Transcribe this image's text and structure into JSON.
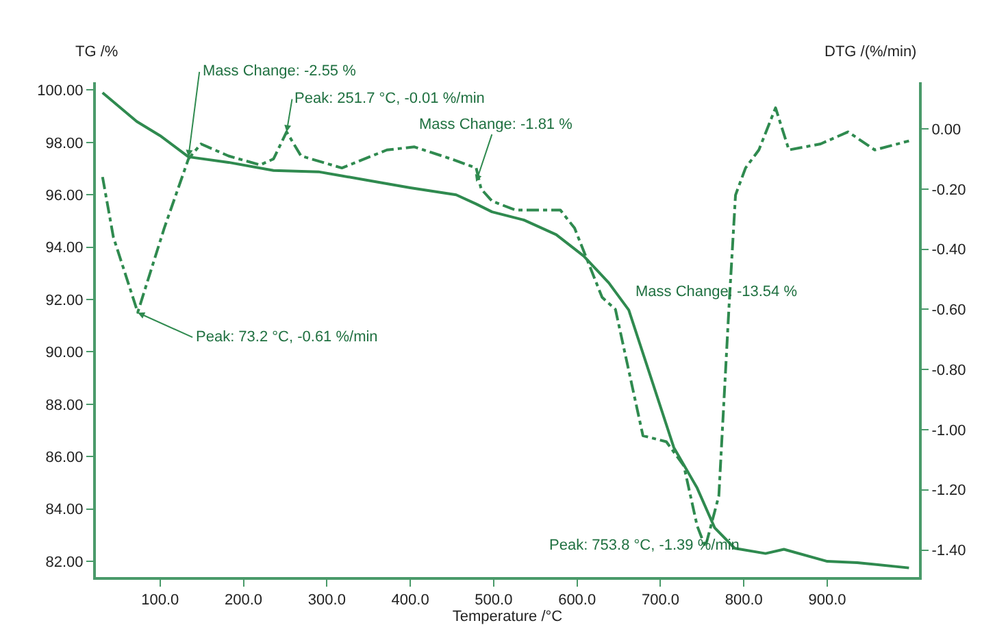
{
  "chart_data": {
    "type": "line",
    "xlabel": "Temperature /°C",
    "ylabel": "TG /%",
    "y2label": "DTG /(%/min)",
    "xlim": [
      23,
      1010
    ],
    "xticks": [
      {
        "value": 100,
        "label": "100.0"
      },
      {
        "value": 200,
        "label": "200.0"
      },
      {
        "value": 300,
        "label": "300.0"
      },
      {
        "value": 400,
        "label": "400.0"
      },
      {
        "value": 500,
        "label": "500.0"
      },
      {
        "value": 600,
        "label": "600.0"
      },
      {
        "value": 700,
        "label": "700.0"
      },
      {
        "value": 800,
        "label": "800.0"
      },
      {
        "value": 900,
        "label": "900.0"
      }
    ],
    "ylim": [
      81.4,
      100.3
    ],
    "yticks": [
      {
        "value": 82,
        "label": "82.00"
      },
      {
        "value": 84,
        "label": "84.00"
      },
      {
        "value": 86,
        "label": "86.00"
      },
      {
        "value": 88,
        "label": "88.00"
      },
      {
        "value": 90,
        "label": "90.00"
      },
      {
        "value": 92,
        "label": "92.00"
      },
      {
        "value": 94,
        "label": "94.00"
      },
      {
        "value": 96,
        "label": "96.00"
      },
      {
        "value": 98,
        "label": "98.00"
      },
      {
        "value": 100,
        "label": "100.00"
      }
    ],
    "y2lim": [
      -1.49,
      0.155
    ],
    "y2ticks": [
      {
        "value": 0,
        "label": "0.00"
      },
      {
        "value": -0.2,
        "label": "-0.20"
      },
      {
        "value": -0.4,
        "label": "-0.40"
      },
      {
        "value": -0.6,
        "label": "-0.60"
      },
      {
        "value": -0.8,
        "label": "-0.80"
      },
      {
        "value": -1.0,
        "label": "-1.00"
      },
      {
        "value": -1.2,
        "label": "-1.20"
      },
      {
        "value": -1.4,
        "label": "-1.40"
      }
    ],
    "marker": "none",
    "series": [
      {
        "color": "#2f8a4f",
        "line_style": "solid",
        "x": [
          31,
          72,
          100,
          134,
          182,
          236,
          290,
          346,
          400,
          455,
          479,
          498,
          536,
          575,
          608,
          638,
          662,
          716,
          744,
          765,
          789,
          826,
          848,
          900,
          936,
          998
        ],
        "values": [
          99.9,
          98.8,
          98.26,
          97.45,
          97.24,
          96.93,
          96.88,
          96.57,
          96.27,
          96.0,
          95.65,
          95.35,
          95.04,
          94.48,
          93.66,
          92.64,
          91.6,
          86.35,
          84.8,
          83.28,
          82.5,
          82.3,
          82.46,
          82.0,
          81.95,
          81.75
        ]
      },
      {
        "color": "#2f8a4f",
        "line_style": "dashed",
        "axis": "y2",
        "x": [
          31,
          44,
          73.2,
          105,
          134,
          149,
          182,
          220,
          236,
          251.7,
          269,
          318,
          372,
          405,
          449,
          479,
          485,
          498,
          526,
          580,
          597,
          630,
          646,
          679,
          707,
          728,
          744,
          753.8,
          770,
          782,
          790,
          802,
          818,
          838,
          854,
          892,
          925,
          957,
          998
        ],
        "values": [
          -0.16,
          -0.36,
          -0.61,
          -0.33,
          -0.1,
          -0.05,
          -0.09,
          -0.12,
          -0.1,
          -0.01,
          -0.09,
          -0.13,
          -0.07,
          -0.06,
          -0.1,
          -0.13,
          -0.2,
          -0.24,
          -0.27,
          -0.27,
          -0.33,
          -0.56,
          -0.6,
          -1.02,
          -1.04,
          -1.12,
          -1.32,
          -1.39,
          -1.22,
          -0.6,
          -0.22,
          -0.13,
          -0.07,
          0.07,
          -0.07,
          -0.05,
          -0.01,
          -0.07,
          -0.04
        ]
      }
    ],
    "annotations": [
      {
        "text": "Mass Change: -2.55 %",
        "x": 134,
        "y": 97.45
      },
      {
        "text": "Peak: 251.7 °C, -0.01 %/min",
        "x": 251.7,
        "y": 98.4
      },
      {
        "text": "Mass Change: -1.81 %",
        "x": 479,
        "y": 96.5
      },
      {
        "text": "Peak: 73.2 °C, -0.61 %/min",
        "x": 73.2,
        "y": 91.5
      },
      "Mass Change: -13.54 %",
      {
        "text": "Peak: 753.8 °C, -1.39 %/min",
        "x": 753.8,
        "y": 82.41
      }
    ]
  }
}
